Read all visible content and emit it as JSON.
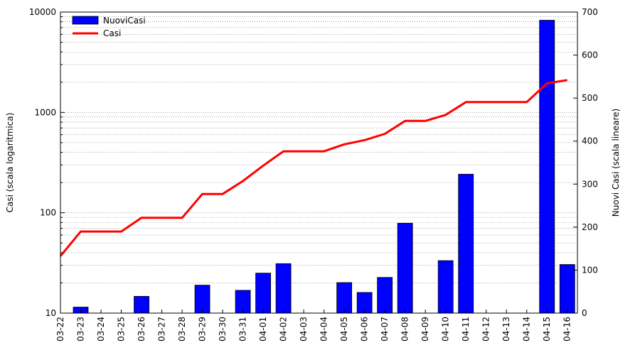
{
  "chart_data": {
    "type": "bar+line",
    "categories": [
      "03-22",
      "03-23",
      "03-24",
      "03-25",
      "03-26",
      "03-27",
      "03-28",
      "03-29",
      "03-30",
      "03-31",
      "04-01",
      "04-02",
      "04-03",
      "04-04",
      "04-05",
      "04-06",
      "04-07",
      "04-08",
      "04-09",
      "04-10",
      "04-11",
      "04-12",
      "04-13",
      "04-14",
      "04-15",
      "04-16"
    ],
    "series": [
      {
        "name": "NuoviCasi",
        "kind": "bar",
        "axis": "right",
        "color": "#0000ff",
        "values": [
          0,
          14,
          0,
          0,
          39,
          0,
          0,
          65,
          0,
          53,
          93,
          115,
          0,
          0,
          71,
          48,
          83,
          209,
          0,
          122,
          323,
          0,
          0,
          0,
          681,
          113
        ]
      },
      {
        "name": "Casi",
        "kind": "line",
        "axis": "left",
        "color": "#ff0000",
        "values": [
          37,
          65,
          65,
          65,
          89,
          89,
          89,
          154,
          154,
          207,
          295,
          410,
          410,
          410,
          481,
          529,
          612,
          823,
          823,
          945,
          1268,
          1268,
          1268,
          1268,
          1949,
          2100
        ]
      }
    ],
    "ylabel": "Casi (scala logaritmica)",
    "y2label": "Nuovi Casi (scala lineare)",
    "ylim": [
      10,
      10000
    ],
    "yscale": "log",
    "y_ticks": [
      "10",
      "100",
      "1000",
      "10000"
    ],
    "y2lim": [
      0,
      700
    ],
    "y2_ticks": [
      "0",
      "100",
      "200",
      "300",
      "400",
      "500",
      "600",
      "700"
    ],
    "grid": true,
    "legend": "top-left"
  }
}
